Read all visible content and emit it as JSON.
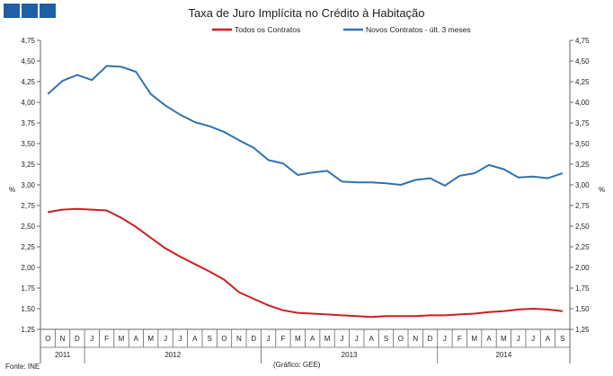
{
  "colors": {
    "logo": "#1f5fa6",
    "series_red": "#cc1f1f",
    "series_blue": "#2f73b0",
    "axis": "#666666",
    "text": "#222222"
  },
  "chart_data": {
    "type": "line",
    "title": "Taxa de Juro Implícita no Crédito à Habitação",
    "ylabel_left": "%",
    "ylabel_right": "%",
    "ylim": [
      1.25,
      4.75
    ],
    "yticks": [
      "1,25",
      "1,50",
      "1,75",
      "2,00",
      "2,25",
      "2,50",
      "2,75",
      "3,00",
      "3,25",
      "3,50",
      "3,75",
      "4,00",
      "4,25",
      "4,50",
      "4,75"
    ],
    "ytick_values": [
      1.25,
      1.5,
      1.75,
      2.0,
      2.25,
      2.5,
      2.75,
      3.0,
      3.25,
      3.5,
      3.75,
      4.0,
      4.25,
      4.5,
      4.75
    ],
    "x": [
      "O",
      "N",
      "D",
      "J",
      "F",
      "M",
      "A",
      "M",
      "J",
      "J",
      "A",
      "S",
      "O",
      "N",
      "D",
      "J",
      "F",
      "M",
      "A",
      "M",
      "J",
      "J",
      "A",
      "S",
      "O",
      "N",
      "D",
      "J",
      "F",
      "M",
      "A",
      "M",
      "J",
      "J",
      "A",
      "S"
    ],
    "years": [
      {
        "label": "2011",
        "start": 0,
        "end": 2
      },
      {
        "label": "2012",
        "start": 3,
        "end": 14
      },
      {
        "label": "2013",
        "start": 15,
        "end": 26
      },
      {
        "label": "2014",
        "start": 27,
        "end": 35
      }
    ],
    "series": [
      {
        "name": "Todos os Contratos",
        "color": "#cc1f1f",
        "values": [
          2.67,
          2.7,
          2.71,
          2.7,
          2.69,
          2.6,
          2.49,
          2.36,
          2.23,
          2.13,
          2.04,
          1.95,
          1.85,
          1.7,
          1.62,
          1.54,
          1.48,
          1.45,
          1.44,
          1.43,
          1.42,
          1.41,
          1.4,
          1.41,
          1.41,
          1.41,
          1.42,
          1.42,
          1.43,
          1.44,
          1.46,
          1.47,
          1.49,
          1.5,
          1.49,
          1.47
        ]
      },
      {
        "name": "Novos Contratos - últ. 3 meses",
        "color": "#2f73b0",
        "values": [
          4.1,
          4.26,
          4.33,
          4.27,
          4.44,
          4.43,
          4.37,
          4.1,
          3.96,
          3.85,
          3.76,
          3.71,
          3.64,
          3.54,
          3.45,
          3.3,
          3.26,
          3.12,
          3.15,
          3.17,
          3.04,
          3.03,
          3.03,
          3.02,
          3.0,
          3.06,
          3.08,
          2.99,
          3.11,
          3.14,
          3.24,
          3.19,
          3.09,
          3.1,
          3.08,
          3.14
        ]
      }
    ],
    "source": "Fonte: INE",
    "credit": "(Gráfico: GEE)"
  }
}
